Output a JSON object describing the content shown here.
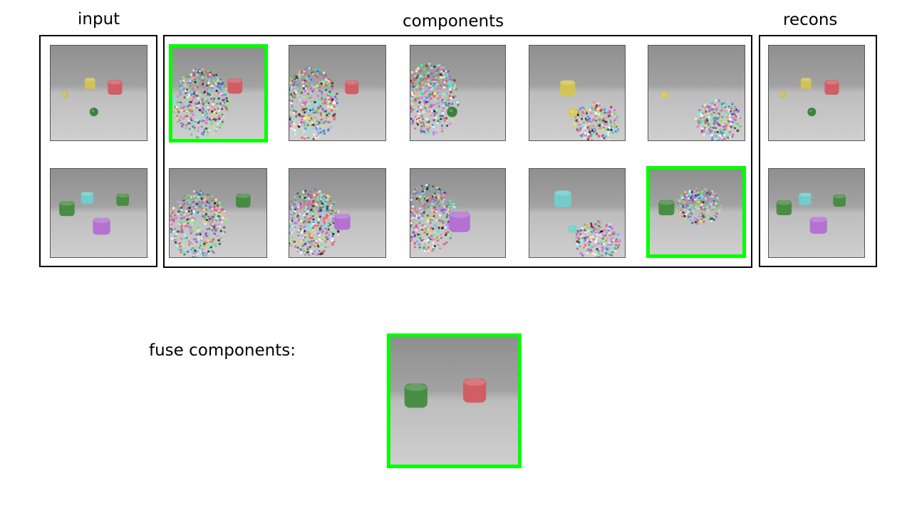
{
  "labels": {
    "input": "input",
    "components": "components",
    "recons": "recons",
    "fuse": "fuse components:"
  },
  "colors": {
    "highlight": "#00ff00",
    "frame": "#000000",
    "background": "#ffffff",
    "scene": "#9a9a9a"
  },
  "rows": [
    {
      "input": [
        "small-yellow-sphere",
        "yellow-cylinder",
        "red-cylinder",
        "green-sphere"
      ],
      "components": [
        {
          "content": [
            "noise-left",
            "red-cylinder"
          ],
          "highlighted": true
        },
        {
          "content": [
            "noise-left",
            "red-cylinder"
          ],
          "highlighted": false
        },
        {
          "content": [
            "noise-left",
            "cyan-sphere",
            "green-sphere"
          ],
          "highlighted": false
        },
        {
          "content": [
            "yellow-cylinder",
            "yellow-sphere",
            "noise-right"
          ],
          "highlighted": false
        },
        {
          "content": [
            "yellow-sphere",
            "noise-right"
          ],
          "highlighted": false
        }
      ],
      "recons": [
        "small-yellow-sphere",
        "yellow-cylinder",
        "red-cylinder",
        "green-sphere"
      ]
    },
    {
      "input": [
        "green-cylinder",
        "cyan-cylinder",
        "green-cylinder",
        "purple-cylinder"
      ],
      "components": [
        {
          "content": [
            "noise-left",
            "green-cylinder"
          ],
          "highlighted": false
        },
        {
          "content": [
            "noise-left",
            "purple-cylinder"
          ],
          "highlighted": false
        },
        {
          "content": [
            "noise-left",
            "purple-cylinder"
          ],
          "highlighted": false
        },
        {
          "content": [
            "cyan-cylinder",
            "cyan-sphere",
            "noise-right"
          ],
          "highlighted": false
        },
        {
          "content": [
            "green-cylinder",
            "noise-right"
          ],
          "highlighted": true
        }
      ],
      "recons": [
        "green-cylinder",
        "cyan-cylinder",
        "green-cylinder",
        "purple-cylinder"
      ]
    }
  ],
  "fused": {
    "content": [
      "green-cylinder",
      "red-cylinder"
    ],
    "highlighted": true
  }
}
